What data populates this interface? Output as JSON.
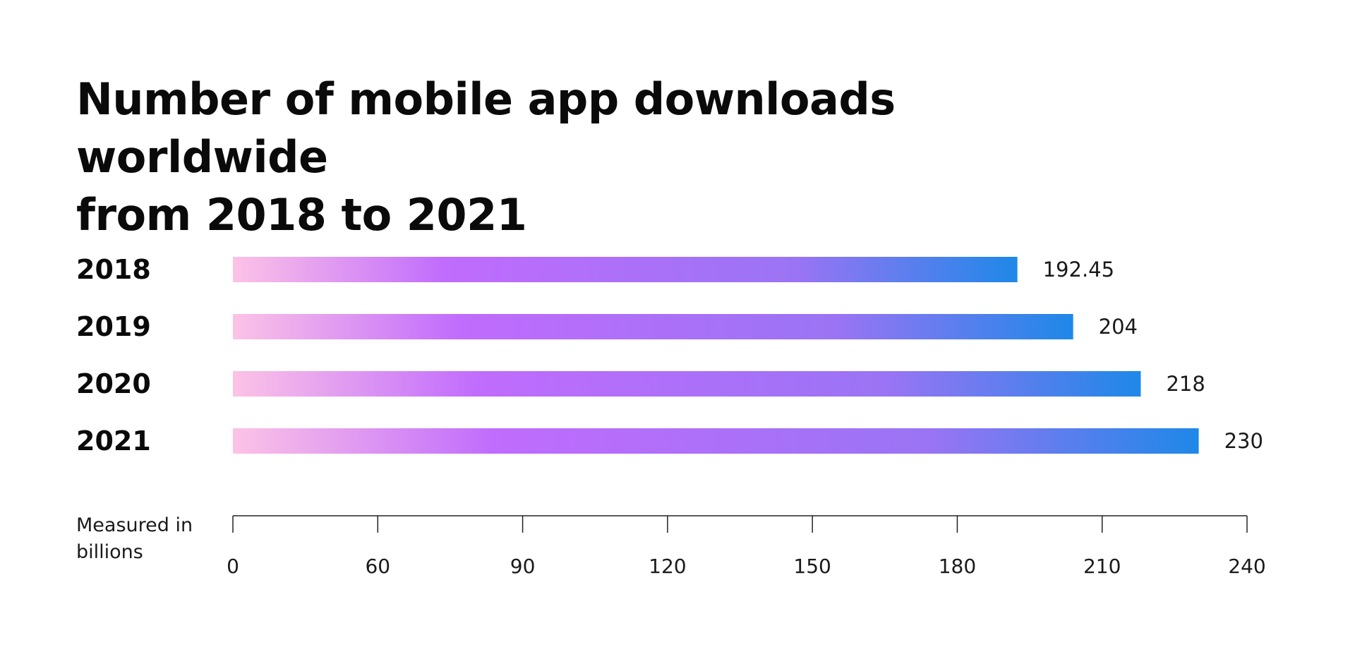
{
  "chart_data": {
    "type": "bar",
    "orientation": "horizontal",
    "title_lines": [
      "Number of mobile app downloads worldwide",
      "from 2018 to 2021"
    ],
    "categories": [
      "2018",
      "2019",
      "2020",
      "2021"
    ],
    "values": [
      192.45,
      204,
      218,
      230
    ],
    "value_labels": [
      "192.45",
      "204",
      "218",
      "230"
    ],
    "xlabel_lines": [
      "Measured in",
      "billions"
    ],
    "x_ticks": [
      "0",
      "60",
      "90",
      "120",
      "150",
      "180",
      "210",
      "240"
    ],
    "xlim": [
      0,
      240
    ],
    "grid": false,
    "legend": "none",
    "colors": {
      "gradient_start": "#fcc3e6",
      "gradient_mid": "#c06cfd",
      "gradient_mid2": "#9a74f4",
      "gradient_end": "#1e88e8",
      "axis": "#222222"
    }
  }
}
